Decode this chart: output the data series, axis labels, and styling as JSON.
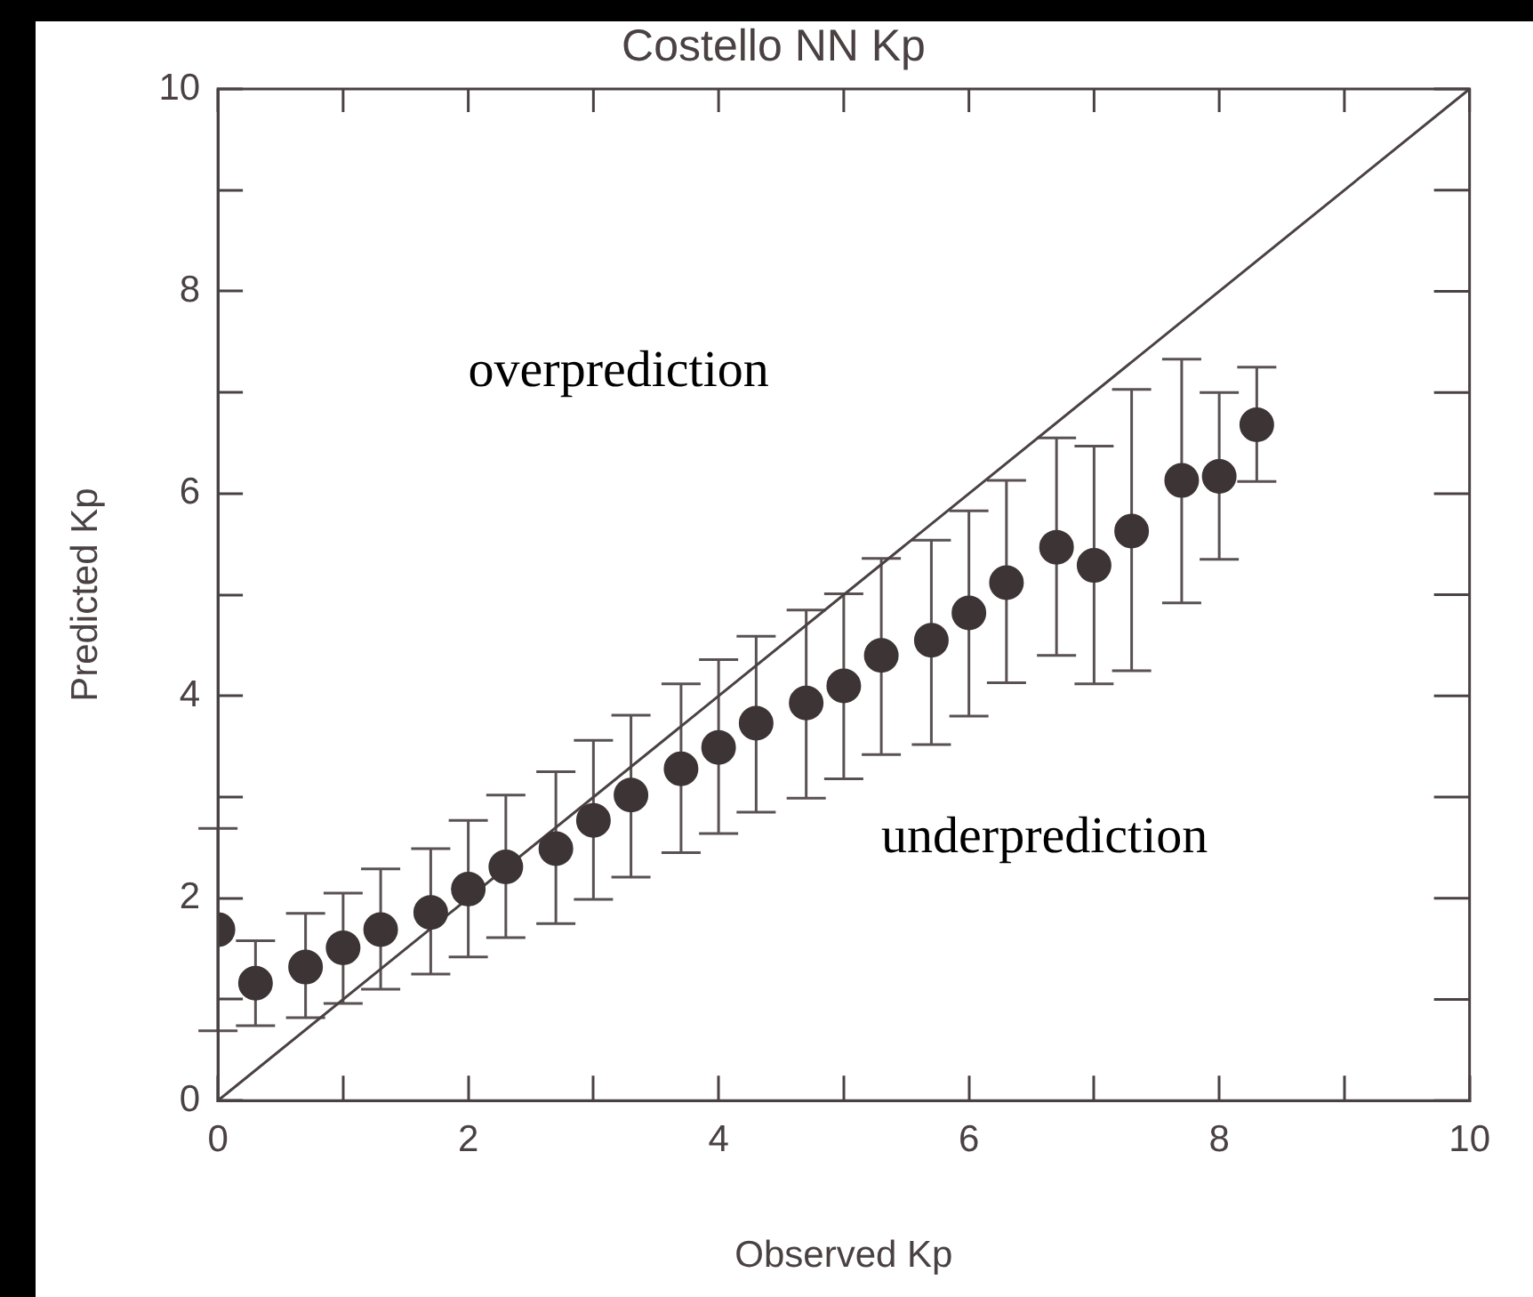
{
  "chart_data": {
    "type": "scatter",
    "title": "Costello NN Kp",
    "xlabel": "Observed Kp",
    "ylabel": "Predicted Kp",
    "series": [
      {
        "color": "#3d3436",
        "x": [
          0,
          0.3,
          0.7,
          1,
          1.3,
          1.7,
          2,
          2.3,
          2.7,
          3,
          3.3,
          3.7,
          4,
          4.3,
          4.7,
          5,
          5.3,
          5.7,
          6,
          6.3,
          6.7,
          7,
          7.3,
          7.7,
          8,
          8.3
        ],
        "values": [
          1.69,
          1.16,
          1.32,
          1.51,
          1.69,
          1.86,
          2.09,
          2.31,
          2.49,
          2.77,
          3.02,
          3.28,
          3.49,
          3.73,
          3.93,
          4.1,
          4.4,
          4.55,
          4.82,
          5.12,
          5.47,
          5.29,
          5.63,
          6.13,
          6.17,
          6.68
        ],
        "errors": [
          [
            0.69,
            2.69
          ],
          [
            0.74,
            1.58
          ],
          [
            0.82,
            1.85
          ],
          [
            0.96,
            2.05
          ],
          [
            1.1,
            2.29
          ],
          [
            1.25,
            2.49
          ],
          [
            1.42,
            2.77
          ],
          [
            1.61,
            3.02
          ],
          [
            1.75,
            3.25
          ],
          [
            1.99,
            3.56
          ],
          [
            2.21,
            3.81
          ],
          [
            2.45,
            4.12
          ],
          [
            2.64,
            4.36
          ],
          [
            2.85,
            4.59
          ],
          [
            2.99,
            4.85
          ],
          [
            3.18,
            5.01
          ],
          [
            3.42,
            5.36
          ],
          [
            3.52,
            5.54
          ],
          [
            3.8,
            5.83
          ],
          [
            4.13,
            6.13
          ],
          [
            4.4,
            6.55
          ],
          [
            4.12,
            6.47
          ],
          [
            4.25,
            7.03
          ],
          [
            4.92,
            7.33
          ],
          [
            5.35,
            7
          ],
          [
            6.12,
            7.25
          ]
        ]
      },
      {
        "type": "line",
        "color": "#4a4143",
        "x": [
          0,
          10
        ],
        "values": [
          0,
          10
        ],
        "marker": "none"
      }
    ],
    "xlim": [
      0,
      10
    ],
    "ylim": [
      0,
      10
    ],
    "xticks": [
      0,
      {
        "value": 1,
        "label": null
      },
      2,
      {
        "value": 3,
        "label": null
      },
      4,
      {
        "value": 5,
        "label": null
      },
      6,
      {
        "value": 7,
        "label": null
      },
      8,
      {
        "value": 9,
        "label": null
      },
      10
    ],
    "yticks": [
      0,
      {
        "value": 1,
        "label": null
      },
      2,
      {
        "value": 3,
        "label": null
      },
      4,
      {
        "value": 5,
        "label": null
      },
      6,
      {
        "value": 7,
        "label": null
      },
      8,
      {
        "value": 9,
        "label": null
      },
      10
    ],
    "annotations": [
      "overprediction",
      "underprediction"
    ],
    "grid": false,
    "legend": false,
    "marker": "circle"
  }
}
